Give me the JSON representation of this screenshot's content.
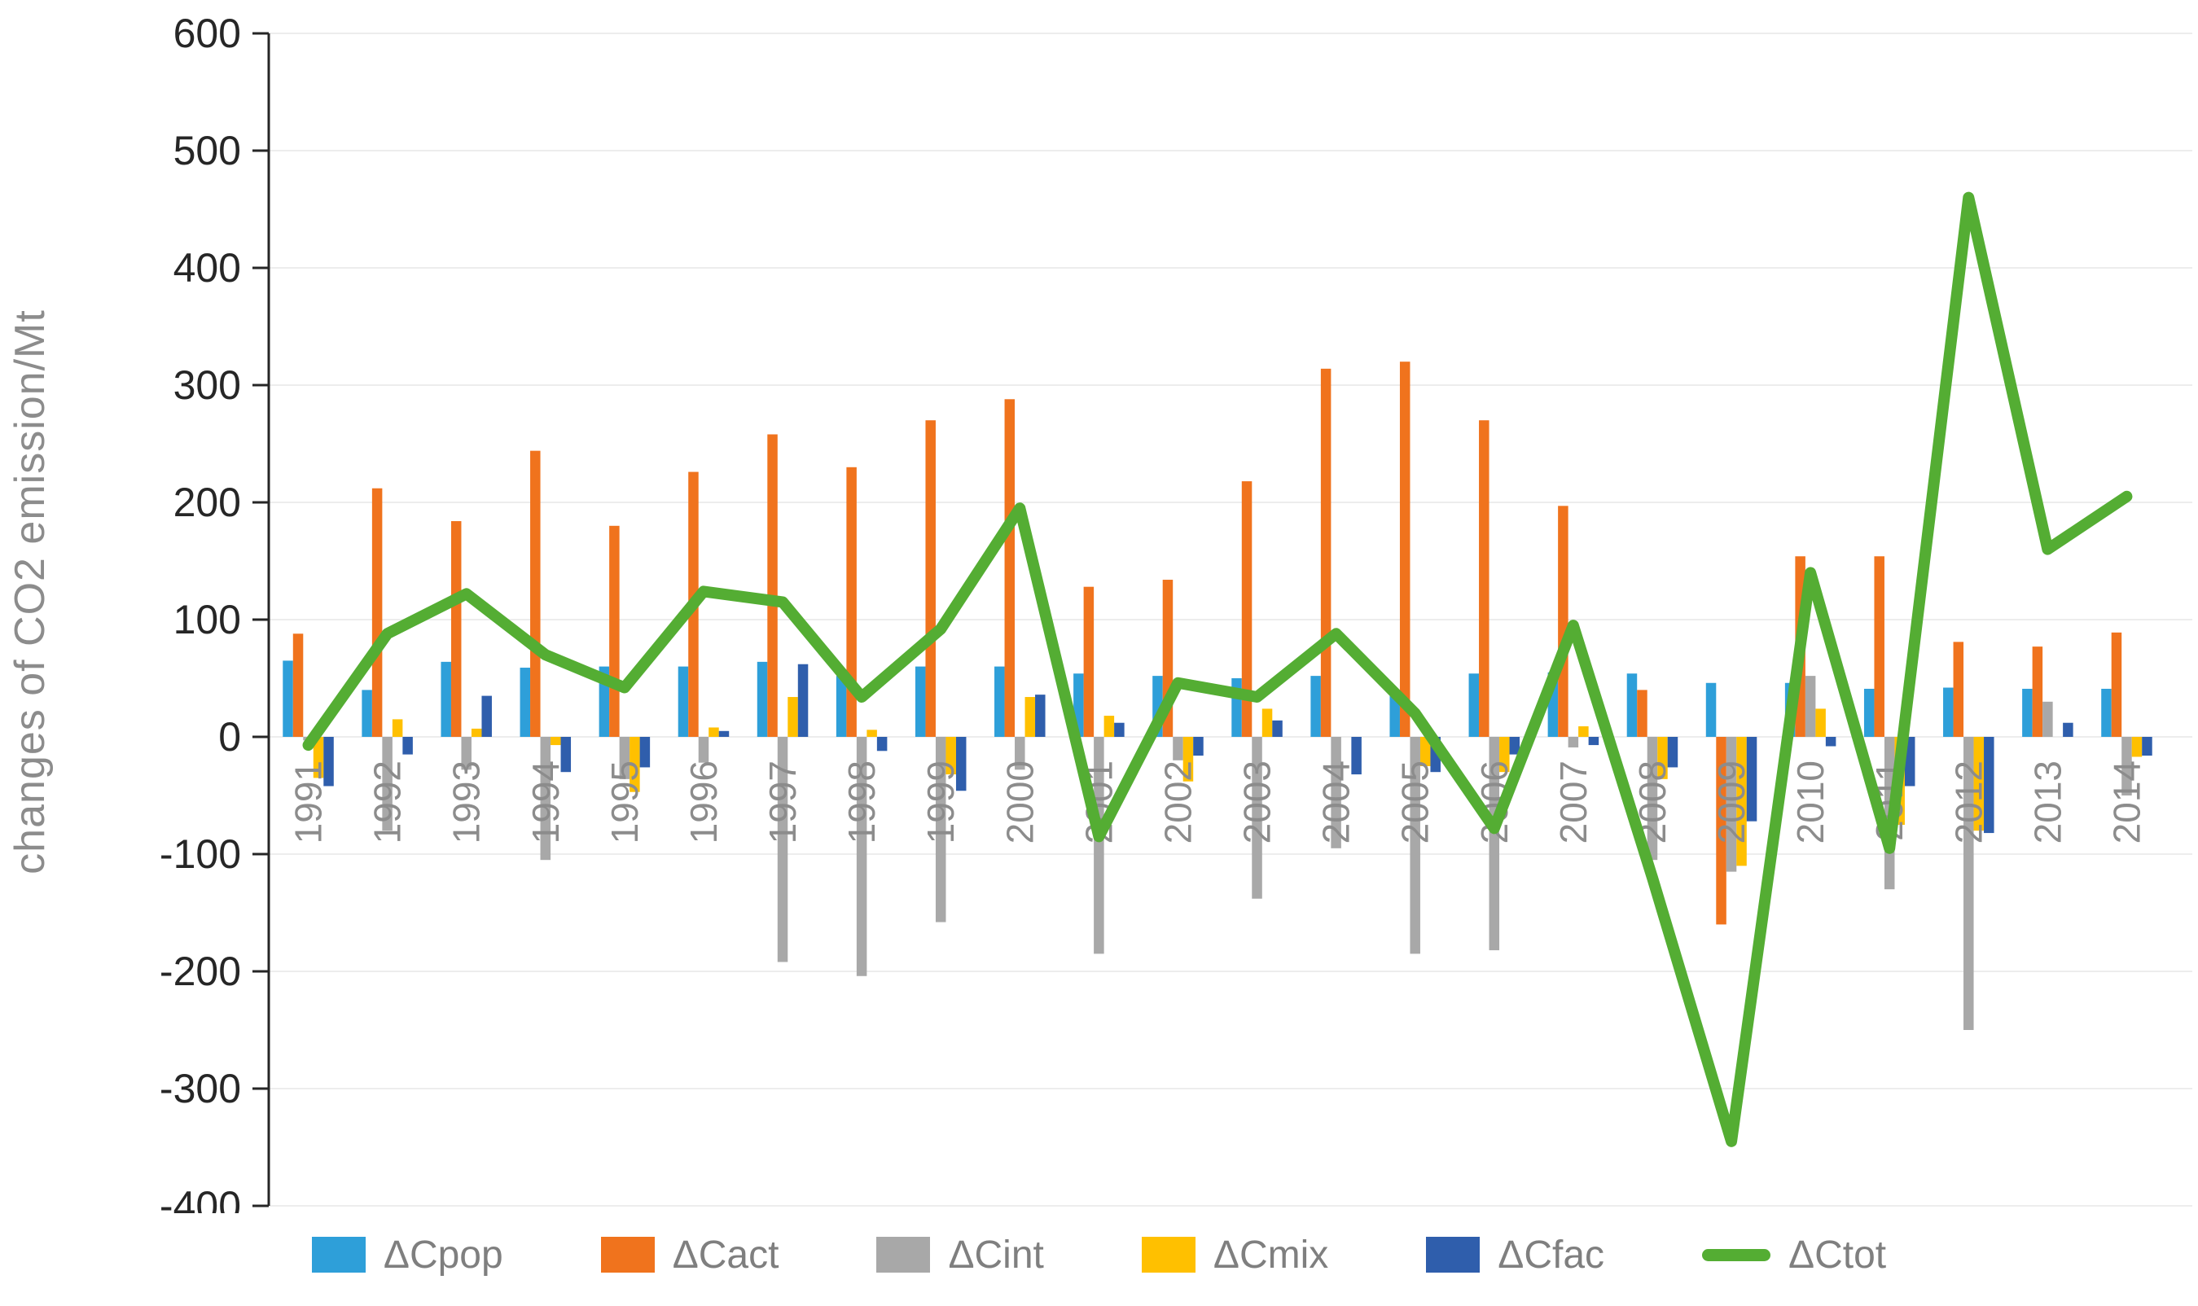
{
  "ylabel": "changes of CO2 emission/Mt",
  "chart_data": {
    "type": "bar",
    "title": "",
    "xlabel": "",
    "ylabel": "changes of CO2 emission/Mt",
    "ylim": [
      -400,
      600
    ],
    "ytick_step": 100,
    "grid": true,
    "legend_position": "bottom",
    "categories": [
      "1991",
      "1992",
      "1993",
      "1994",
      "1995",
      "1996",
      "1997",
      "1998",
      "1999",
      "2000",
      "2001",
      "2002",
      "2003",
      "2004",
      "2005",
      "2006",
      "2007",
      "2008",
      "2009",
      "2010",
      "2011",
      "2012",
      "2013",
      "2014"
    ],
    "series": [
      {
        "name": "ΔCpop",
        "kind": "bar",
        "color": "#2e9fd9",
        "values": [
          65,
          40,
          64,
          59,
          60,
          60,
          64,
          52,
          60,
          60,
          54,
          52,
          50,
          52,
          36,
          54,
          55,
          54,
          46,
          46,
          41,
          42,
          41,
          41
        ]
      },
      {
        "name": "ΔCact",
        "kind": "bar",
        "color": "#f0731d",
        "values": [
          88,
          212,
          184,
          244,
          180,
          226,
          258,
          230,
          270,
          288,
          128,
          134,
          218,
          314,
          320,
          270,
          197,
          40,
          -160,
          154,
          154,
          81,
          77,
          89
        ]
      },
      {
        "name": "ΔCint",
        "kind": "bar",
        "color": "#a8a8a8",
        "values": [
          -3,
          -80,
          -28,
          -105,
          -36,
          -22,
          -192,
          -204,
          -158,
          -28,
          -185,
          -20,
          -138,
          -95,
          -185,
          -182,
          -9,
          -105,
          -115,
          52,
          -130,
          -250,
          30,
          -50
        ]
      },
      {
        "name": "ΔCmix",
        "kind": "bar",
        "color": "#ffc000",
        "values": [
          -35,
          15,
          7,
          -7,
          -47,
          8,
          34,
          6,
          -32,
          34,
          18,
          -38,
          24,
          0,
          -25,
          -30,
          9,
          -36,
          -110,
          24,
          -75,
          -80,
          0,
          -17
        ]
      },
      {
        "name": "ΔCfac",
        "kind": "bar",
        "color": "#2f5eac",
        "values": [
          -42,
          -15,
          35,
          -30,
          -26,
          5,
          62,
          -12,
          -46,
          36,
          12,
          -16,
          14,
          -32,
          -30,
          -15,
          -7,
          -26,
          -72,
          -8,
          -42,
          -82,
          12,
          -16
        ]
      },
      {
        "name": "ΔCtot",
        "kind": "line",
        "color": "#54ad33",
        "values": [
          -7,
          88,
          122,
          70,
          42,
          124,
          115,
          34,
          92,
          195,
          -85,
          46,
          34,
          88,
          20,
          -78,
          95,
          -120,
          -345,
          140,
          -95,
          460,
          160,
          205
        ]
      }
    ],
    "axis_tick_labels": [
      "600",
      "500",
      "400",
      "300",
      "200",
      "100",
      "0",
      "-100",
      "-200",
      "-300",
      "-400"
    ]
  },
  "style": {
    "grid_color": "#ededed",
    "axis_color": "#262626",
    "tick_label_color": "#262626",
    "category_label_color": "#8c8c8c",
    "legend_label_color": "#7f7f7f"
  }
}
